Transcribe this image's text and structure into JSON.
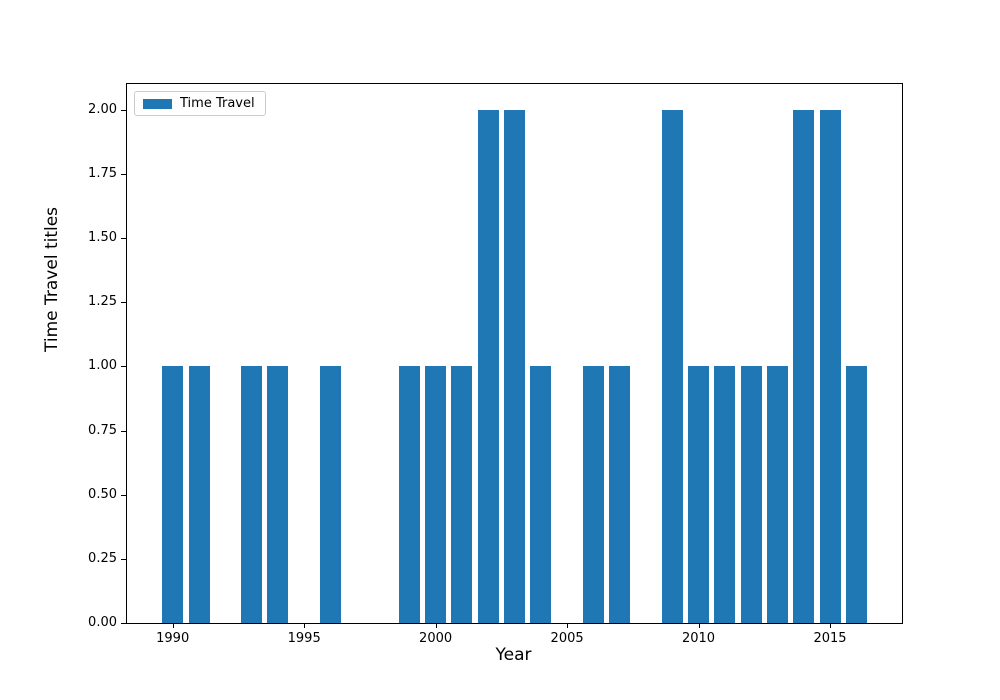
{
  "figure": {
    "xlabel": "Year",
    "ylabel": "Time Travel titles",
    "legend": {
      "entries": [
        {
          "label": "Time Travel",
          "color": "#1f77b4"
        }
      ],
      "position": "upper left"
    }
  },
  "chart_data": {
    "type": "bar",
    "title": "",
    "xlabel": "Year",
    "ylabel": "Time Travel titles",
    "series": [
      {
        "name": "Time Travel",
        "color": "#1f77b4",
        "x": [
          1990,
          1991,
          1992,
          1993,
          1994,
          1995,
          1996,
          1997,
          1998,
          1999,
          2000,
          2001,
          2002,
          2003,
          2004,
          2005,
          2006,
          2007,
          2008,
          2009,
          2010,
          2011,
          2012,
          2013,
          2014,
          2015,
          2016
        ],
        "values": [
          1,
          1,
          0,
          1,
          1,
          0,
          1,
          0,
          0,
          1,
          1,
          1,
          2,
          2,
          1,
          0,
          1,
          1,
          0,
          2,
          1,
          1,
          1,
          1,
          2,
          2,
          1
        ]
      }
    ],
    "bar_width": 0.8,
    "xlim": [
      1988.26,
      2017.74
    ],
    "ylim": [
      0,
      2.1
    ],
    "xticks": [
      1990,
      1995,
      2000,
      2005,
      2010,
      2015
    ],
    "yticks": [
      0.0,
      0.25,
      0.5,
      0.75,
      1.0,
      1.25,
      1.5,
      1.75,
      2.0
    ],
    "ytick_labels": [
      "0.00",
      "0.25",
      "0.50",
      "0.75",
      "1.00",
      "1.25",
      "1.50",
      "1.75",
      "2.00"
    ],
    "grid": false,
    "legend_position": "upper left"
  }
}
